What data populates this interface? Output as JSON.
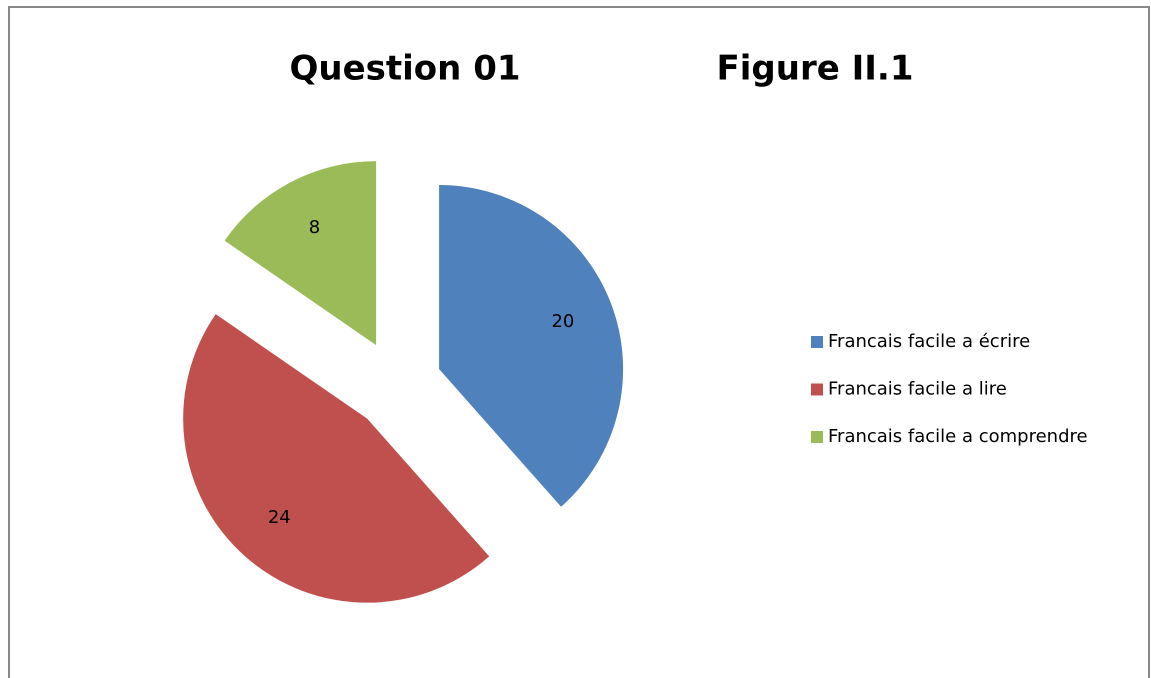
{
  "chart_data": {
    "type": "pie",
    "title": "Question 01",
    "annotation": "Figure II.1",
    "categories": [
      "Francais facile a écrire",
      "Francais facile a lire",
      "Francais facile a comprendre"
    ],
    "values": [
      20,
      24,
      8
    ],
    "colors": [
      "#4f81bd",
      "#c0504d",
      "#9bbb59"
    ],
    "legend": "right"
  }
}
